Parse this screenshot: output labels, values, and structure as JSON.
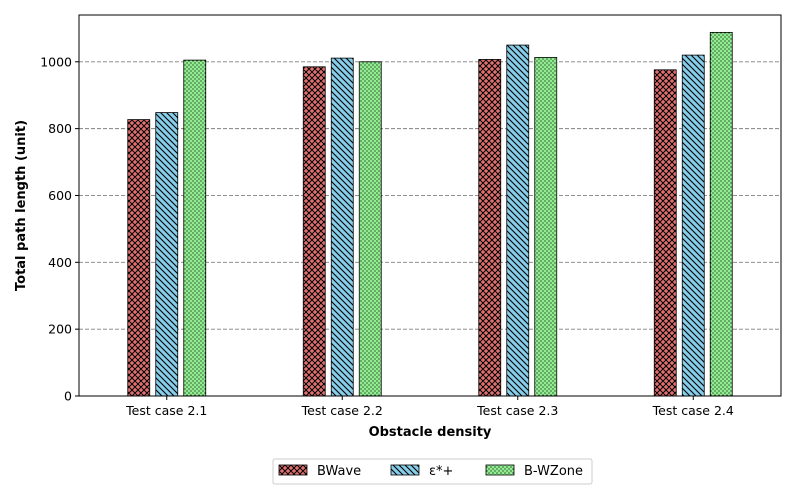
{
  "chart_data": {
    "type": "bar",
    "categories": [
      "Test case 2.1",
      "Test case 2.2",
      "Test case 2.3",
      "Test case 2.4"
    ],
    "series": [
      {
        "name": "BWave",
        "values": [
          827,
          985,
          1007,
          976
        ],
        "color": "#E07070",
        "hatch": "crosshatch"
      },
      {
        "name": "ε*+",
        "values": [
          848,
          1011,
          1050,
          1020
        ],
        "color": "#87CEEB",
        "hatch": "backslash"
      },
      {
        "name": "B-WZone",
        "values": [
          1005,
          1000,
          1013,
          1088
        ],
        "color": "#90EE90",
        "hatch": "dots"
      }
    ],
    "xlabel": "Obstacle density",
    "ylabel": "Total path length (unit)",
    "ylim": [
      0,
      1140
    ],
    "yticks": [
      0,
      200,
      400,
      600,
      800,
      1000
    ],
    "grid": "horizontal dashed",
    "legend_position": "bottom-center"
  }
}
